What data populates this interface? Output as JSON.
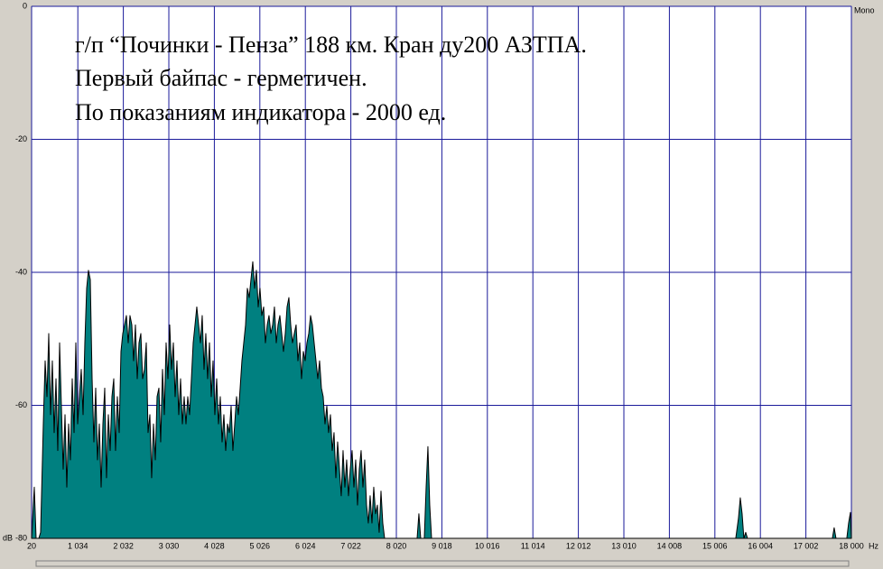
{
  "chart_data": {
    "type": "area",
    "annotations": [
      "г/п “Починки - Пенза” 188 км. Кран ду200 АЗТПА.",
      "Первый байпас - герметичен.",
      "По показаниям индикатора - 2000 ед."
    ],
    "channel_label": "Mono",
    "xlabel": "Hz",
    "ylabel": "dB",
    "color": "#008080",
    "grid": true,
    "xlim": [
      20,
      18000
    ],
    "ylim": [
      -80,
      0
    ],
    "yticks": [
      0,
      -20,
      -40,
      -60,
      -80
    ],
    "xticks": [
      20,
      {
        "value": 1034,
        "label": "1 034"
      },
      {
        "value": 2032,
        "label": "2 032"
      },
      {
        "value": 3030,
        "label": "3 030"
      },
      {
        "value": 4028,
        "label": "4 028"
      },
      {
        "value": 5026,
        "label": "5 026"
      },
      {
        "value": 6024,
        "label": "6 024"
      },
      {
        "value": 7022,
        "label": "7 022"
      },
      {
        "value": 8020,
        "label": "8 020"
      },
      {
        "value": 9018,
        "label": "9 018"
      },
      {
        "value": 10016,
        "label": "10 016"
      },
      {
        "value": 11014,
        "label": "11 014"
      },
      {
        "value": 12012,
        "label": "12 012"
      },
      {
        "value": 13010,
        "label": "13 010"
      },
      {
        "value": 14008,
        "label": "14 008"
      },
      {
        "value": 15006,
        "label": "15 006"
      },
      {
        "value": 16004,
        "label": "16 004"
      },
      {
        "value": 17002,
        "label": "17 002"
      },
      {
        "value": 18000,
        "label": "18 000"
      }
    ],
    "x": [
      20,
      79,
      119,
      178,
      218,
      277,
      317,
      357,
      396,
      436,
      475,
      515,
      555,
      594,
      634,
      673,
      713,
      753,
      792,
      832,
      871,
      911,
      951,
      990,
      1030,
      1069,
      1109,
      1149,
      1188,
      1228,
      1267,
      1307,
      1347,
      1386,
      1426,
      1465,
      1505,
      1545,
      1584,
      1624,
      1663,
      1703,
      1743,
      1782,
      1822,
      1861,
      1901,
      1941,
      1980,
      2020,
      2059,
      2099,
      2139,
      2178,
      2218,
      2257,
      2297,
      2337,
      2376,
      2416,
      2455,
      2495,
      2535,
      2574,
      2614,
      2653,
      2693,
      2733,
      2772,
      2812,
      2851,
      2891,
      2931,
      2970,
      3010,
      3049,
      3089,
      3129,
      3168,
      3208,
      3247,
      3287,
      3327,
      3366,
      3406,
      3445,
      3485,
      3525,
      3564,
      3604,
      3643,
      3683,
      3723,
      3762,
      3802,
      3841,
      3881,
      3921,
      3960,
      4000,
      4039,
      4079,
      4119,
      4158,
      4198,
      4237,
      4277,
      4317,
      4356,
      4396,
      4435,
      4475,
      4515,
      4554,
      4594,
      4633,
      4673,
      4713,
      4752,
      4792,
      4831,
      4871,
      4911,
      4950,
      4990,
      5029,
      5069,
      5109,
      5148,
      5188,
      5227,
      5267,
      5307,
      5346,
      5386,
      5425,
      5465,
      5505,
      5544,
      5584,
      5623,
      5663,
      5703,
      5742,
      5782,
      5821,
      5861,
      5901,
      5940,
      5980,
      6019,
      6059,
      6099,
      6138,
      6178,
      6217,
      6257,
      6297,
      6336,
      6376,
      6415,
      6455,
      6495,
      6534,
      6574,
      6613,
      6653,
      6693,
      6732,
      6772,
      6811,
      6851,
      6891,
      6930,
      6970,
      7009,
      7049,
      7089,
      7128,
      7168,
      7207,
      7247,
      7287,
      7326,
      7366,
      7405,
      7445,
      7485,
      7524,
      7564,
      7603,
      7643,
      7683,
      7722,
      7762,
      7841,
      8475,
      8514,
      8554,
      8633,
      8673,
      8712,
      8752,
      8792,
      15464,
      15523,
      15563,
      15603,
      15642,
      15682,
      15721,
      17583,
      17622,
      17662,
      17899,
      17939,
      17979,
      18000
    ],
    "values": [
      -80,
      -72.3,
      -80,
      -80,
      -79.1,
      -62.8,
      -53.3,
      -58.7,
      -49.2,
      -61.4,
      -53.3,
      -64.1,
      -56,
      -66.8,
      -50.6,
      -60.1,
      -69.6,
      -61.4,
      -72.3,
      -62.8,
      -68.2,
      -56,
      -64.1,
      -50.6,
      -62.8,
      -58.7,
      -54.6,
      -61.4,
      -50.6,
      -42.4,
      -39.7,
      -41.1,
      -56,
      -65.5,
      -57.4,
      -68.2,
      -62.8,
      -72.3,
      -62.8,
      -57.4,
      -70.9,
      -61.4,
      -66.8,
      -58.7,
      -56,
      -66.8,
      -58.7,
      -64.1,
      -51.9,
      -49.2,
      -47.9,
      -46.5,
      -50.6,
      -46.5,
      -47.9,
      -53.3,
      -47.9,
      -56,
      -50.6,
      -49.2,
      -56,
      -54.6,
      -50.6,
      -64.1,
      -61.4,
      -70.9,
      -62.8,
      -68.2,
      -58.7,
      -57.4,
      -65.5,
      -54.6,
      -61.4,
      -50.6,
      -56,
      -47.9,
      -54.6,
      -50.6,
      -58.7,
      -53.3,
      -61.4,
      -56,
      -62.8,
      -58.7,
      -62.8,
      -58.7,
      -61.4,
      -56,
      -50.6,
      -47.9,
      -45.2,
      -47.9,
      -50.6,
      -46.5,
      -54.6,
      -49.2,
      -56,
      -50.6,
      -58.7,
      -53.3,
      -61.4,
      -56,
      -62.8,
      -58.7,
      -65.5,
      -61.4,
      -66.8,
      -62.8,
      -64.1,
      -60.1,
      -66.8,
      -62.8,
      -58.7,
      -61.4,
      -57.4,
      -53.3,
      -50.6,
      -47.9,
      -42.4,
      -43.8,
      -41.1,
      -38.4,
      -42.4,
      -39.7,
      -45.2,
      -42.4,
      -46.5,
      -45.2,
      -50.6,
      -47.9,
      -46.5,
      -49.2,
      -47.9,
      -45.2,
      -50.6,
      -47.9,
      -46.5,
      -49.2,
      -51.9,
      -49.2,
      -45.2,
      -43.8,
      -47.9,
      -50.6,
      -49.2,
      -47.9,
      -53.3,
      -50.6,
      -56,
      -51.9,
      -53.3,
      -50.6,
      -49.2,
      -46.5,
      -47.9,
      -50.6,
      -53.3,
      -56,
      -53.3,
      -57.4,
      -58.7,
      -62.8,
      -60.1,
      -64.1,
      -61.4,
      -66.8,
      -64.1,
      -70.9,
      -65.5,
      -69.6,
      -73.6,
      -66.8,
      -72.3,
      -68.2,
      -73.6,
      -69.6,
      -66.8,
      -72.3,
      -68.2,
      -75,
      -69.6,
      -66.8,
      -72.3,
      -68.2,
      -75,
      -77.7,
      -73.6,
      -77.7,
      -72.3,
      -76.3,
      -75,
      -79.1,
      -72.9,
      -77.7,
      -80,
      -80,
      -80,
      -76.3,
      -80,
      -80,
      -72.3,
      -66.2,
      -75,
      -80,
      -80,
      -77,
      -73.9,
      -76.3,
      -80,
      -79.1,
      -80,
      -80,
      -78.4,
      -80,
      -80,
      -77.7,
      -76.1,
      -80
    ]
  }
}
